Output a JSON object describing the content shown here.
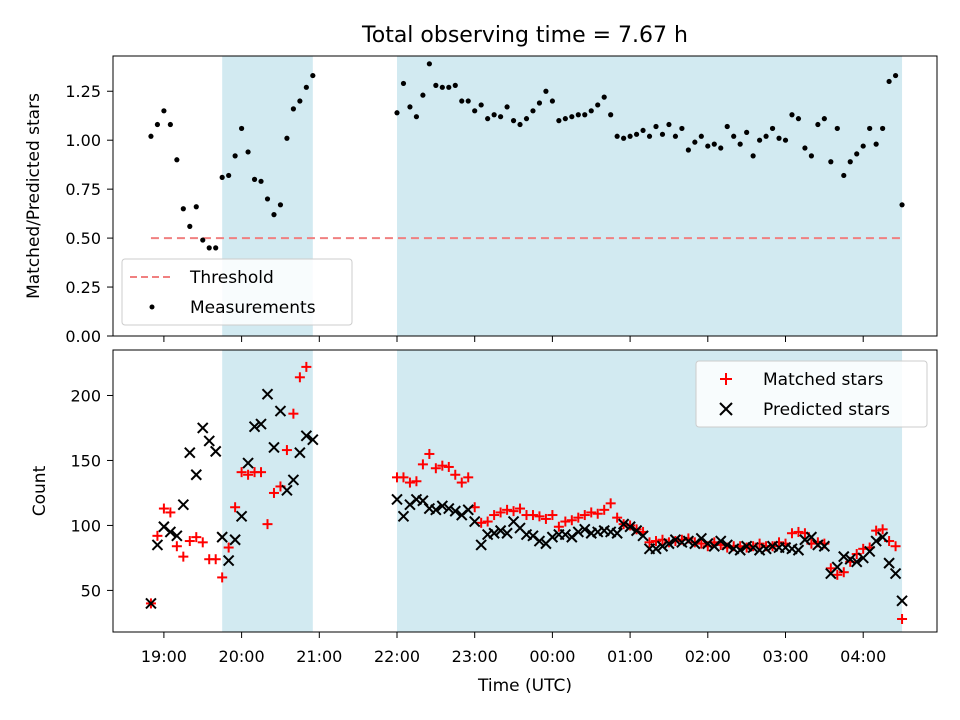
{
  "chart_data": {
    "title": "Total observing time = 7.67 h",
    "type": "scatter",
    "xlabel": "Time (UTC)",
    "x_ticks": [
      "19:00",
      "20:00",
      "21:00",
      "22:00",
      "23:00",
      "00:00",
      "01:00",
      "02:00",
      "03:00",
      "04:00"
    ],
    "shaded_intervals": [
      [
        "19:45",
        "20:55"
      ],
      [
        "22:00",
        "04:30"
      ]
    ],
    "shade_color": "#add8e6",
    "top": {
      "ylabel": "Matched/Predicted stars",
      "ylim": [
        0,
        1.43
      ],
      "yticks": [
        "0.00",
        "0.25",
        "0.50",
        "0.75",
        "1.00",
        "1.25"
      ],
      "threshold": {
        "name": "Threshold",
        "value": 0.5,
        "x_range": [
          "18:50",
          "04:30"
        ],
        "color": "#f08080"
      },
      "series": [
        {
          "name": "Measurements",
          "color": "#000000",
          "x": [
            "18:50",
            "18:55",
            "19:00",
            "19:05",
            "19:10",
            "19:15",
            "19:20",
            "19:25",
            "19:30",
            "19:35",
            "19:40",
            "19:45",
            "19:50",
            "19:55",
            "20:00",
            "20:05",
            "20:10",
            "20:15",
            "20:20",
            "20:25",
            "20:30",
            "20:35",
            "20:40",
            "20:45",
            "20:50",
            "20:55",
            "22:00",
            "22:05",
            "22:10",
            "22:15",
            "22:20",
            "22:25",
            "22:30",
            "22:35",
            "22:40",
            "22:45",
            "22:50",
            "22:55",
            "23:00",
            "23:05",
            "23:10",
            "23:15",
            "23:20",
            "23:25",
            "23:30",
            "23:35",
            "23:40",
            "23:45",
            "23:50",
            "23:55",
            "00:00",
            "00:05",
            "00:10",
            "00:15",
            "00:20",
            "00:25",
            "00:30",
            "00:35",
            "00:40",
            "00:45",
            "00:50",
            "00:55",
            "01:00",
            "01:05",
            "01:10",
            "01:15",
            "01:20",
            "01:25",
            "01:30",
            "01:35",
            "01:40",
            "01:45",
            "01:50",
            "01:55",
            "02:00",
            "02:05",
            "02:10",
            "02:15",
            "02:20",
            "02:25",
            "02:30",
            "02:35",
            "02:40",
            "02:45",
            "02:50",
            "02:55",
            "03:00",
            "03:05",
            "03:10",
            "03:15",
            "03:20",
            "03:25",
            "03:30",
            "03:35",
            "03:40",
            "03:45",
            "03:50",
            "03:55",
            "04:00",
            "04:05",
            "04:10",
            "04:15",
            "04:20",
            "04:25",
            "04:30"
          ],
          "values": [
            1.02,
            1.08,
            1.15,
            1.08,
            0.9,
            0.65,
            0.56,
            0.66,
            0.49,
            0.45,
            0.45,
            0.81,
            0.82,
            0.92,
            1.06,
            0.94,
            0.8,
            0.79,
            0.7,
            0.62,
            0.67,
            1.01,
            1.16,
            1.2,
            1.27,
            1.33,
            1.14,
            1.29,
            1.17,
            1.12,
            1.23,
            1.39,
            1.28,
            1.27,
            1.27,
            1.28,
            1.2,
            1.2,
            1.15,
            1.18,
            1.11,
            1.13,
            1.12,
            1.17,
            1.1,
            1.08,
            1.11,
            1.15,
            1.19,
            1.25,
            1.2,
            1.1,
            1.11,
            1.12,
            1.13,
            1.13,
            1.15,
            1.18,
            1.22,
            1.13,
            1.02,
            1.01,
            1.02,
            1.03,
            1.05,
            1.02,
            1.07,
            1.03,
            1.08,
            1.02,
            1.06,
            0.95,
            0.99,
            1.02,
            0.97,
            0.98,
            0.96,
            1.07,
            1.02,
            0.98,
            1.04,
            0.92,
            1.0,
            1.02,
            1.06,
            1.01,
            1.0,
            1.13,
            1.11,
            0.96,
            0.92,
            1.08,
            1.11,
            0.89,
            1.06,
            0.82,
            0.89,
            0.93,
            0.97,
            1.06,
            0.98,
            1.06,
            1.3,
            1.33,
            0.67
          ]
        }
      ],
      "legend": {
        "position": "lower left",
        "entries": [
          "Threshold",
          "Measurements"
        ]
      }
    },
    "bottom": {
      "ylabel": "Count",
      "ylim": [
        18,
        235
      ],
      "yticks": [
        "50",
        "100",
        "150",
        "200"
      ],
      "series": [
        {
          "name": "Matched stars",
          "marker": "+",
          "color": "#ff0000",
          "values": [
            40,
            92,
            113,
            110,
            84,
            76,
            88,
            91,
            87,
            74,
            74,
            60,
            83,
            114,
            141,
            139,
            141,
            141,
            101,
            125,
            130,
            158,
            186,
            214,
            222,
            null,
            137,
            137,
            133,
            134,
            147,
            155,
            144,
            146,
            145,
            139,
            133,
            137,
            114,
            102,
            103,
            108,
            110,
            112,
            111,
            113,
            108,
            108,
            107,
            105,
            108,
            99,
            103,
            104,
            106,
            108,
            110,
            109,
            112,
            117,
            106,
            101,
            100,
            97,
            95,
            87,
            88,
            89,
            87,
            88,
            89,
            90,
            87,
            86,
            84,
            87,
            85,
            83,
            84,
            84,
            83,
            84,
            86,
            84,
            84,
            87,
            86,
            94,
            95,
            94,
            86,
            87,
            86,
            67,
            62,
            64,
            72,
            78,
            82,
            83,
            96,
            97,
            88,
            84,
            28
          ]
        },
        {
          "name": "Predicted stars",
          "marker": "x",
          "color": "#000000",
          "values": [
            40,
            85,
            99,
            95,
            92,
            116,
            156,
            139,
            175,
            165,
            157,
            91,
            73,
            89,
            107,
            148,
            176,
            178,
            201,
            160,
            188,
            127,
            135,
            156,
            169,
            166,
            120,
            107,
            116,
            120,
            119,
            113,
            112,
            115,
            113,
            111,
            108,
            112,
            103,
            85,
            93,
            94,
            96,
            94,
            103,
            98,
            93,
            92,
            88,
            86,
            91,
            93,
            93,
            91,
            95,
            97,
            94,
            95,
            96,
            95,
            94,
            101,
            99,
            96,
            92,
            82,
            82,
            84,
            86,
            89,
            87,
            88,
            86,
            90,
            86,
            84,
            88,
            85,
            82,
            81,
            84,
            83,
            81,
            82,
            84,
            83,
            83,
            82,
            81,
            89,
            91,
            85,
            84,
            63,
            68,
            76,
            74,
            72,
            75,
            80,
            88,
            91,
            71,
            63,
            42
          ]
        }
      ],
      "legend": {
        "position": "upper right",
        "entries": [
          "Matched stars",
          "Predicted stars"
        ]
      }
    }
  }
}
